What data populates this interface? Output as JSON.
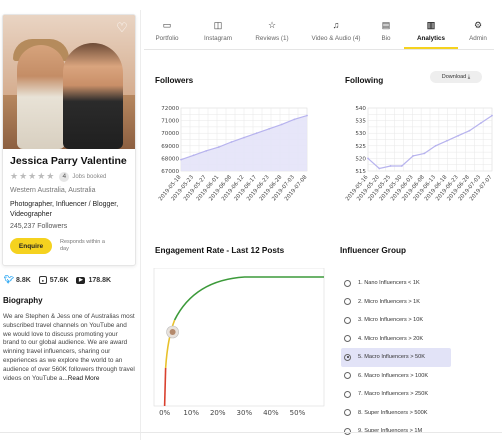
{
  "profile": {
    "name": "Jessica Parry Valentine",
    "stars": "★★★★★",
    "jobs_count": "4",
    "jobs_label": "Jobs booked",
    "location": "Western Australia, Australia",
    "title": "Photographer, Influencer / Blogger, Videographer",
    "followers_total": "245,237 Followers",
    "enquire_label": "Enquire",
    "respond_text": "Responds within a day"
  },
  "social": {
    "twitter": "8.8K",
    "instagram": "57.6K",
    "youtube": "178.8K"
  },
  "bio": {
    "title": "Biography",
    "text": "We are Stephen & Jess one of Australias most subscribed travel channels on YouTube and we would love to discuss promoting your brand to our global audience. We are award winning travel influencers, sharing our experiences as we explore the world to an audience of over 560K followers through travel videos on YouTube a",
    "read_more": "...Read More"
  },
  "tabs": [
    {
      "label": "Portfolio",
      "icon": "portfolio-icon"
    },
    {
      "label": "Instagram",
      "icon": "instagram-icon"
    },
    {
      "label": "Reviews (1)",
      "icon": "star-icon"
    },
    {
      "label": "Video & Audio (4)",
      "icon": "video-icon"
    },
    {
      "label": "Bio",
      "icon": "bio-icon"
    },
    {
      "label": "Analytics",
      "icon": "analytics-icon",
      "active": true
    },
    {
      "label": "Admin",
      "icon": "admin-icon"
    }
  ],
  "headings": {
    "followers": "Followers",
    "following": "Following",
    "download": "Download",
    "engagement": "Engagement Rate - Last 12 Posts",
    "influencer_group": "Influencer Group"
  },
  "colors": {
    "accent": "#f5d21f",
    "chart_line": "#b7b3ee",
    "chart_fill": "#e4e3f8",
    "selected_bg": "#e2e3f7",
    "curve_green": "#3c9a3a"
  },
  "chart_data": [
    {
      "type": "area",
      "title": "Followers",
      "x": [
        "2019-05-18",
        "2019-05-23",
        "2019-05-27",
        "2019-06-01",
        "2019-06-08",
        "2019-06-12",
        "2019-06-17",
        "2019-06-23",
        "2019-06-28",
        "2019-07-03",
        "2019-07-08"
      ],
      "y_ticks": [
        "72000",
        "71000",
        "70000",
        "69000",
        "68000",
        "67000"
      ],
      "ylim": [
        67000,
        72000
      ],
      "values": [
        67900,
        68250,
        68600,
        68900,
        69300,
        69650,
        70000,
        70350,
        70700,
        71100,
        71400
      ],
      "grid": true
    },
    {
      "type": "line",
      "title": "Following",
      "x": [
        "2019-05-16",
        "2019-05-20",
        "2019-05-25",
        "2019-05-30",
        "2019-06-03",
        "2019-06-08",
        "2019-06-13",
        "2019-06-18",
        "2019-06-23",
        "2019-06-28",
        "2019-07-03",
        "2019-07-07"
      ],
      "y_ticks": [
        "540",
        "535",
        "530",
        "525",
        "520",
        "515"
      ],
      "ylim": [
        515,
        540
      ],
      "values": [
        520,
        516,
        517,
        517,
        521,
        522,
        525,
        527,
        529,
        531,
        534,
        537
      ],
      "grid": true
    },
    {
      "type": "line",
      "title": "Engagement Rate - Last 12 Posts",
      "x_ticks": [
        "0%",
        "10%",
        "20%",
        "30%",
        "40%",
        "50%"
      ],
      "xlim": [
        -4,
        60
      ],
      "marker_value": 3
    }
  ],
  "influencer_groups": [
    {
      "label": "1. Nano Influencers < 1K"
    },
    {
      "label": "2. Micro Influencers > 1K"
    },
    {
      "label": "3. Micro Influencers > 10K"
    },
    {
      "label": "4. Micro Influencers > 20K"
    },
    {
      "label": "5. Macro Influencers > 50K",
      "selected": true
    },
    {
      "label": "6. Macro Influencers > 100K"
    },
    {
      "label": "7. Macro Influencers > 250K"
    },
    {
      "label": "8. Super Influencers > 500K"
    },
    {
      "label": "9. Super Influencers > 1M"
    }
  ]
}
